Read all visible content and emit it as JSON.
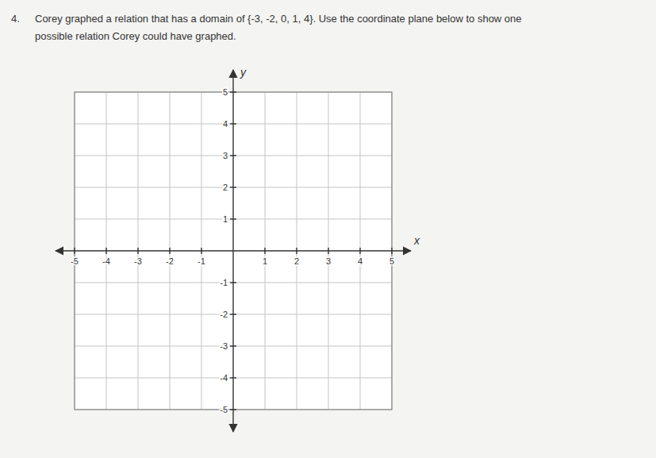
{
  "chart_data": {
    "type": "coordinate_plane",
    "title": "Corey graphed a relation that has a domain of {-3, -2, 0, 1, 4}.  Use the coordinate plane below to show one",
    "subtitle": "possible relation Corey could have graphed.",
    "annotations": [
      "4."
    ],
    "xlabel": "x",
    "ylabel": "y",
    "xlim": [
      -5.6,
      5.6
    ],
    "ylim": [
      -5.7,
      5.7
    ],
    "xticks": [
      -5,
      -4,
      -3,
      -2,
      -1,
      1,
      2,
      3,
      4,
      5
    ],
    "yticks": [
      -5,
      -4,
      -3,
      -2,
      -1,
      1,
      2,
      3,
      4,
      5
    ],
    "grid": true
  }
}
